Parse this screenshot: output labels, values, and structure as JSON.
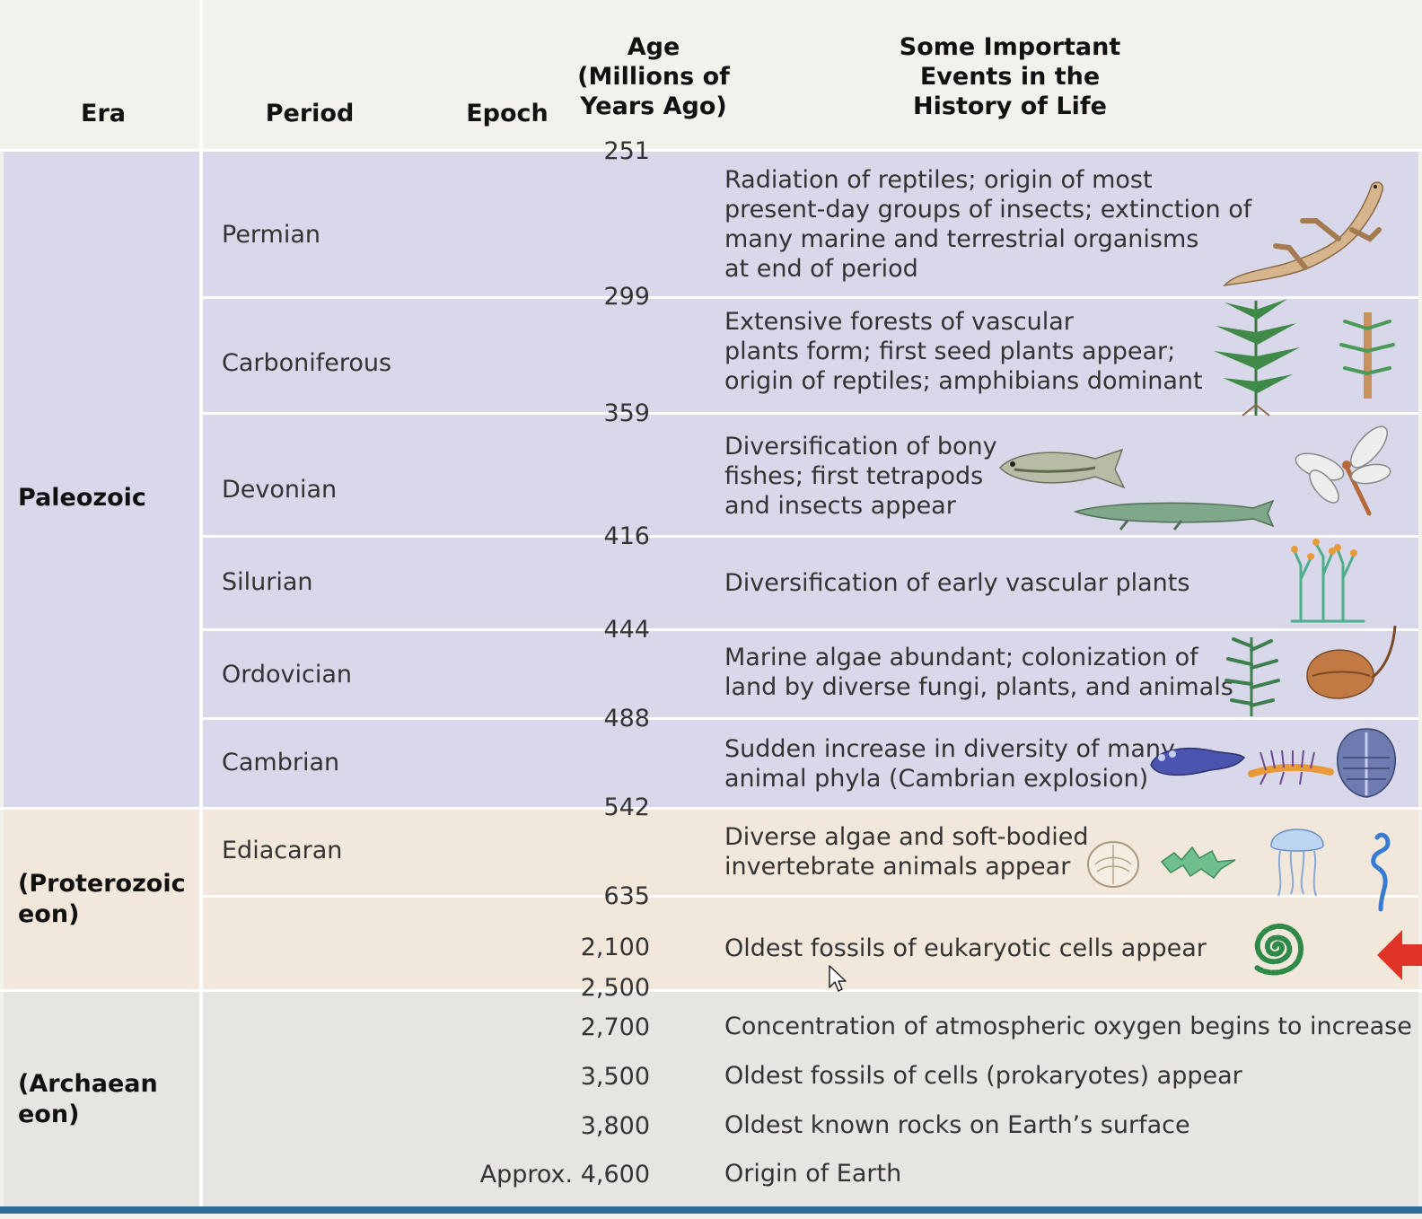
{
  "header": {
    "era": "Era",
    "period": "Period",
    "epoch": "Epoch",
    "age": [
      "Age",
      "(Millions of",
      "Years Ago)"
    ],
    "events": [
      "Some Important",
      "Events in the",
      "History of Life"
    ]
  },
  "eras": {
    "paleozoic": "Paleozoic",
    "proterozoic": [
      "(Proterozoic",
      "eon)"
    ],
    "archaean": [
      "(Archaean",
      "eon)"
    ]
  },
  "periods": [
    "Permian",
    "Carboniferous",
    "Devonian",
    "Silurian",
    "Ordovician",
    "Cambrian",
    "Ediacaran"
  ],
  "ages": [
    "251",
    "299",
    "359",
    "416",
    "444",
    "488",
    "542",
    "635",
    "2,100",
    "2,500",
    "2,700",
    "3,500",
    "3,800",
    "Approx. 4,600"
  ],
  "events": [
    [
      "Radiation of reptiles; origin of most",
      "present-day groups of insects; extinction of",
      "many marine and terrestrial organisms",
      "at end of period"
    ],
    [
      "Extensive forests of vascular",
      "plants form; first seed plants appear;",
      "origin of reptiles; amphibians dominant"
    ],
    [
      "Diversification of bony",
      "fishes; first tetrapods",
      "and insects appear"
    ],
    [
      "Diversification of early vascular plants"
    ],
    [
      "Marine algae abundant; colonization of",
      "land by diverse fungi, plants, and animals"
    ],
    [
      "Sudden increase in diversity of many",
      "animal phyla (Cambrian explosion)"
    ],
    [
      "Diverse algae and soft-bodied",
      "invertebrate animals appear"
    ],
    [
      "Oldest fossils of eukaryotic cells appear"
    ],
    [
      "Concentration of atmospheric oxygen begins to increase"
    ],
    [
      "Oldest fossils of cells (prokaryotes) appear"
    ],
    [
      "Oldest known rocks on Earth’s surface"
    ],
    [
      "Origin of Earth"
    ]
  ],
  "icons": [
    "lizard-icon",
    "fern-icon",
    "horsetail-icon",
    "bass-fish-icon",
    "tetrapod-fish-icon",
    "dragonfly-icon",
    "early-plant-icon",
    "algae-icon",
    "horseshoe-crab-icon",
    "cambrian-worm-icon",
    "centipede-icon",
    "trilobite-icon",
    "ediacaran-disc-icon",
    "ediacaran-frond-icon",
    "jellyfish-icon",
    "spiral-worm-icon",
    "eukaryotic-coil-icon",
    "red-arrow-icon",
    "mouse-cursor-icon"
  ],
  "colors": {
    "header_bg": "#f2f1ec",
    "paleozoic_bg": "#d9d8ea",
    "proterozoic_bg": "#f1e8db",
    "archaean_bg": "#e6e5e1",
    "bottom_rule": "#2e6c99",
    "arrow": "#e0332a"
  }
}
